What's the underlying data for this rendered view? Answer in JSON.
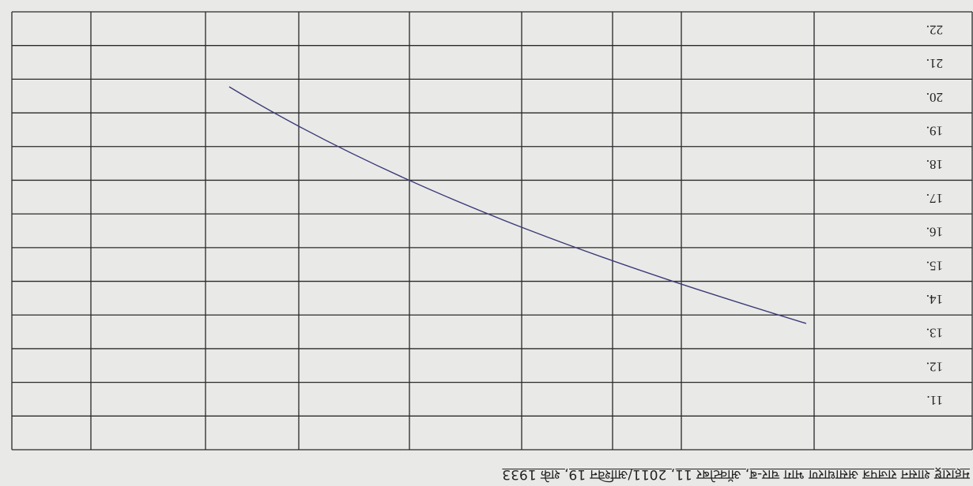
{
  "footer": "महाराष्ट्र शासन राजपत्र असाधारण भाग चार-ब, ऑक्टोबर 11, 2011/आश्विन 19, शके 1933",
  "table": {
    "row_numbers": [
      "11.",
      "12.",
      "13.",
      "14.",
      "15.",
      "16.",
      "17.",
      "18.",
      "19.",
      "20.",
      "21.",
      "22."
    ]
  }
}
